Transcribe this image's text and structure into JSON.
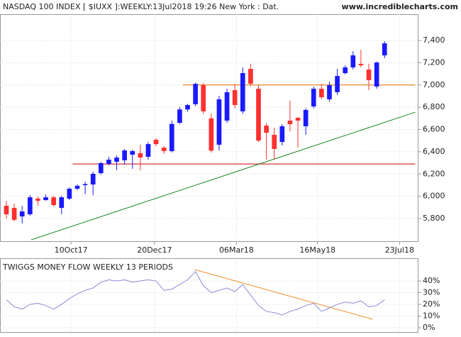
{
  "chart_data": [
    {
      "type": "candlestick",
      "title": "NASDAQ 100 INDEX [ $IUXX ]:WEEKLY:13Jul2018 19:26 New York : Dat.",
      "subtitle": "www.incrediblecharts.com",
      "categories": [
        null,
        null,
        null,
        null,
        null,
        null,
        null,
        null,
        null,
        null,
        null,
        null,
        null,
        null,
        null,
        null,
        null,
        null,
        null,
        null,
        null,
        null,
        null,
        null,
        null,
        null,
        null,
        null,
        null,
        null,
        null,
        null,
        null,
        null,
        null,
        null,
        null,
        null,
        null,
        null,
        null,
        null,
        null,
        null,
        null,
        null,
        null,
        null,
        null
      ],
      "open": [
        5915,
        5896,
        5819,
        5838,
        5979,
        5966,
        5991,
        5896,
        5979,
        6068,
        6100,
        6106,
        6208,
        6291,
        6310,
        6323,
        6374,
        6387,
        6355,
        6508,
        6437,
        6406,
        6660,
        6780,
        6827,
        6998,
        6700,
        6463,
        6680,
        6954,
        6763,
        7145,
        6966,
        6635,
        6552,
        6488,
        6680,
        6705,
        6629,
        6807,
        6966,
        6871,
        6935,
        7107,
        7158,
        7190,
        7139,
        6986,
        7266
      ],
      "high": [
        5960,
        5934,
        5915,
        6010,
        5998,
        6017,
        6004,
        6004,
        6081,
        6106,
        6132,
        6221,
        6310,
        6355,
        6367,
        6425,
        6418,
        6463,
        6488,
        6520,
        6450,
        6680,
        6800,
        6830,
        7020,
        7017,
        6743,
        6903,
        6966,
        7011,
        7158,
        7190,
        6998,
        6660,
        6616,
        6648,
        6860,
        6712,
        6790,
        6985,
        7011,
        7030,
        7145,
        7177,
        7304,
        7317,
        7190,
        7210,
        7394
      ],
      "low": [
        5800,
        5775,
        5756,
        5826,
        5915,
        5960,
        5909,
        5838,
        5966,
        6055,
        6020,
        6010,
        6196,
        6278,
        6234,
        6285,
        6247,
        6234,
        6329,
        6450,
        6380,
        6395,
        6650,
        6760,
        6810,
        6740,
        6393,
        6412,
        6660,
        6790,
        6740,
        6990,
        6488,
        6330,
        6330,
        6457,
        6584,
        6437,
        6552,
        6790,
        6871,
        6850,
        6910,
        7094,
        7139,
        7158,
        6954,
        6966,
        7240
      ],
      "close": [
        5838,
        5788,
        5864,
        5991,
        5960,
        5991,
        5921,
        5991,
        6068,
        6094,
        6110,
        6202,
        6298,
        6329,
        6348,
        6412,
        6406,
        6348,
        6469,
        6469,
        6406,
        6650,
        6780,
        6820,
        7010,
        6763,
        6410,
        6871,
        6935,
        6820,
        7107,
        7011,
        6500,
        6571,
        6425,
        6629,
        6648,
        6680,
        6776,
        6966,
        6890,
        6998,
        7081,
        7158,
        7266,
        7177,
        7043,
        7202,
        7374
      ],
      "up_color": "#1a1aff",
      "down_color": "#ff3030",
      "xlim": [
        -0.81,
        52.3
      ],
      "xticks": [
        {
          "value": 8.2,
          "label": "10Oct17"
        },
        {
          "value": 18.8,
          "label": "20Dec17"
        },
        {
          "value": 29.2,
          "label": "06Mar18"
        },
        {
          "value": 39.5,
          "label": "16May18"
        },
        {
          "value": 49.9,
          "label": "23Jul18"
        }
      ],
      "ylim": [
        5590,
        7636
      ],
      "yticks": [
        {
          "value": 5800,
          "label": "5,800"
        },
        {
          "value": 6000,
          "label": "6,000"
        },
        {
          "value": 6200,
          "label": "6,200"
        },
        {
          "value": 6400,
          "label": "6,400"
        },
        {
          "value": 6600,
          "label": "6,600"
        },
        {
          "value": 6800,
          "label": "6,800"
        },
        {
          "value": 7000,
          "label": "7,000"
        },
        {
          "value": 7200,
          "label": "7,200"
        },
        {
          "value": 7400,
          "label": "7,400"
        }
      ],
      "grid": true,
      "lines": [
        {
          "color": "#cc0000",
          "x": [
            8.4,
            51.9
          ],
          "y": [
            6290,
            6290
          ]
        },
        {
          "color": "#e07000",
          "x": [
            22.4,
            51.9
          ],
          "y": [
            7000,
            7000
          ]
        },
        {
          "color": "#1a8a1a",
          "x": [
            3.15,
            51.9
          ],
          "y": [
            5609,
            6756
          ]
        }
      ]
    },
    {
      "type": "line",
      "title": "TWIGGS MONEY FLOW WEEKLY 13 PERIODS",
      "color": "#8a8ad8",
      "values": [
        24,
        18,
        16,
        20,
        21,
        19,
        16,
        20,
        25,
        29,
        32,
        34,
        39,
        41,
        40,
        41,
        39,
        40,
        41,
        40,
        32,
        33,
        37,
        41,
        48,
        36,
        30,
        32,
        34,
        31,
        37,
        28,
        19,
        14,
        13,
        11,
        14,
        16,
        19,
        21,
        14,
        17,
        20,
        22,
        21,
        23,
        18,
        19,
        24
      ],
      "xlim": [
        -0.81,
        52.3
      ],
      "ylim": [
        -3.6,
        58.8
      ],
      "yticks": [
        {
          "value": 0,
          "label": "0%"
        },
        {
          "value": 10,
          "label": "10%"
        },
        {
          "value": 20,
          "label": "20%"
        },
        {
          "value": 30,
          "label": "30%"
        },
        {
          "value": 40,
          "label": "40%"
        }
      ],
      "grid": true,
      "lines": [
        {
          "color": "#f08a20",
          "x": [
            23.9,
            46.5
          ],
          "y": [
            49.7,
            7.3
          ]
        }
      ]
    }
  ]
}
